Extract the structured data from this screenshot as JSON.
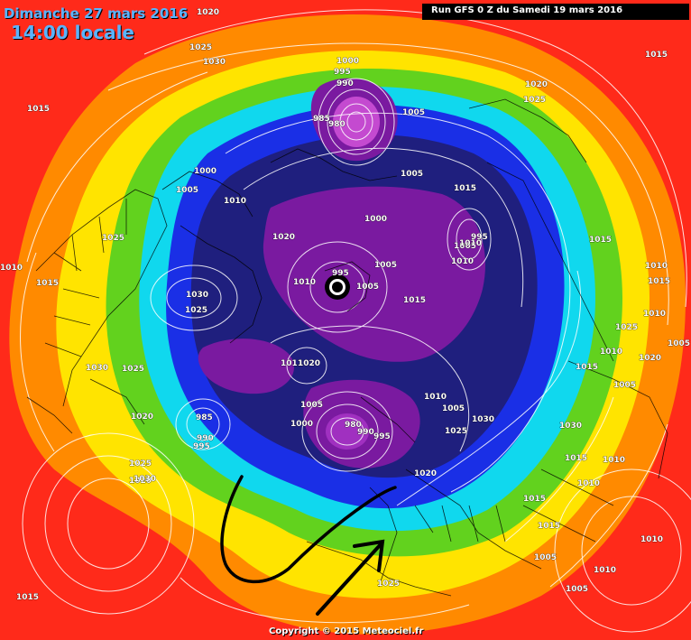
{
  "header": {
    "date": "Dimanche 27 mars 2016",
    "time": "14:00 locale",
    "run": "Run GFS 0 Z du Samedi 19 mars 2016"
  },
  "footer": {
    "copyright": "Copyright © 2015 Meteociel.fr"
  },
  "isobar_labels": [
    "1020",
    "1025",
    "1030",
    "1015",
    "1015",
    "1025",
    "1020",
    "1000",
    "995",
    "990",
    "985",
    "980",
    "1005",
    "1000",
    "1005",
    "1010",
    "1005",
    "1020",
    "1015",
    "1000",
    "995",
    "1005",
    "1005",
    "1010",
    "1015",
    "1010",
    "995",
    "1005",
    "1010",
    "1025",
    "1010",
    "1015",
    "1030",
    "1025",
    "1030",
    "1025",
    "1020",
    "985",
    "990",
    "995",
    "1000",
    "1011",
    "1020",
    "1005",
    "980",
    "990",
    "995",
    "1030",
    "1025",
    "1020",
    "1015",
    "1010",
    "1015",
    "1010",
    "1005",
    "1020",
    "1025",
    "1030",
    "1015",
    "1010",
    "1005",
    "1010",
    "1015",
    "1010",
    "1005",
    "1025",
    "1020",
    "1015",
    "1010",
    "1015",
    "1025",
    "1030",
    "1010",
    "1005",
    "1005",
    "1010",
    "1015"
  ],
  "colors": {
    "high": "#ff2a1a",
    "orange": "#ff8a00",
    "yellow": "#ffe400",
    "green": "#62d21e",
    "cyan": "#10d8ee",
    "blue": "#1a2fe6",
    "navy": "#1f1f7e",
    "purple": "#7a1aa0",
    "annotation": "#000000"
  }
}
